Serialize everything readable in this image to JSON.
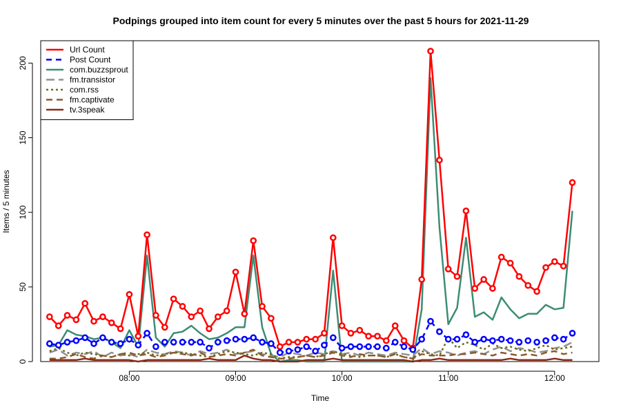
{
  "chart_data": {
    "type": "line",
    "title": "Podpings grouped into item count for every 5 minutes  over the past 5 hours for 2021-11-29",
    "xlabel": "Time",
    "ylabel": "Items / 5 minutes",
    "x_start": "07:15",
    "x_step_minutes": 5,
    "xlim": [
      "07:10",
      "12:25"
    ],
    "ylim": [
      0,
      215
    ],
    "x_ticks": [
      "08:00",
      "09:00",
      "10:00",
      "11:00",
      "12:00"
    ],
    "y_ticks": [
      0,
      50,
      100,
      150,
      200
    ],
    "grid": false,
    "legend_position": "top-left",
    "series": [
      {
        "name": "Url Count",
        "color": "#ff0000",
        "dash": "solid",
        "width": 2.5,
        "markers": true,
        "values": [
          30,
          24,
          31,
          28,
          39,
          27,
          30,
          26,
          22,
          45,
          17,
          85,
          31,
          23,
          42,
          37,
          30,
          34,
          22,
          30,
          34,
          60,
          32,
          81,
          37,
          29,
          10,
          13,
          13,
          15,
          15,
          19,
          83,
          24,
          19,
          21,
          17,
          17,
          14,
          24,
          14,
          9,
          55,
          208,
          135,
          62,
          57,
          101,
          49,
          55,
          49,
          70,
          66,
          57,
          51,
          47,
          63,
          67,
          64,
          120
        ]
      },
      {
        "name": "Post Count",
        "color": "#0000ff",
        "dash": "8,6",
        "width": 2.5,
        "markers": true,
        "values": [
          12,
          11,
          13,
          14,
          16,
          12,
          16,
          13,
          12,
          15,
          11,
          19,
          10,
          13,
          13,
          13,
          13,
          13,
          9,
          13,
          14,
          15,
          15,
          16,
          13,
          12,
          6,
          7,
          8,
          10,
          7,
          11,
          16,
          9,
          10,
          10,
          10,
          10,
          9,
          13,
          10,
          8,
          15,
          27,
          20,
          15,
          15,
          18,
          13,
          15,
          14,
          15,
          14,
          13,
          14,
          13,
          14,
          16,
          15,
          19
        ]
      },
      {
        "name": "com.buzzsprout",
        "color": "#3c8c73",
        "dash": "solid",
        "width": 2.5,
        "markers": false,
        "values": [
          10,
          11,
          21,
          18,
          17,
          15,
          16,
          13,
          9,
          21,
          10,
          71,
          16,
          10,
          19,
          20,
          24,
          19,
          15,
          16,
          19,
          23,
          23,
          71,
          23,
          5,
          0,
          1,
          1,
          0,
          0,
          0,
          61,
          0,
          0,
          0,
          0,
          0,
          0,
          0,
          0,
          0,
          35,
          190,
          90,
          25,
          36,
          83,
          30,
          33,
          28,
          43,
          35,
          29,
          32,
          32,
          38,
          35,
          36,
          101
        ]
      },
      {
        "name": "fm.transistor",
        "color": "#909090",
        "dash": "12,6",
        "width": 2.5,
        "markers": false,
        "values": [
          6,
          8,
          4,
          6,
          5,
          7,
          3,
          6,
          4,
          5,
          3,
          8,
          6,
          5,
          7,
          6,
          4,
          7,
          5,
          6,
          8,
          5,
          6,
          7,
          5,
          4,
          3,
          6,
          5,
          4,
          6,
          5,
          7,
          5,
          6,
          4,
          6,
          5,
          4,
          6,
          5,
          4,
          9,
          5,
          7,
          6,
          4,
          6,
          7,
          5,
          8,
          10,
          7,
          9,
          8,
          6,
          7,
          9,
          10,
          13
        ]
      },
      {
        "name": "com.rss",
        "color": "#6b6b1a",
        "dash": "3,4",
        "width": 2.5,
        "markers": false,
        "values": [
          7,
          9,
          6,
          4,
          6,
          5,
          4,
          3,
          5,
          4,
          5,
          6,
          4,
          5,
          6,
          6,
          5,
          4,
          3,
          5,
          7,
          6,
          5,
          4,
          6,
          5,
          2,
          3,
          3,
          4,
          3,
          5,
          7,
          5,
          4,
          3,
          4,
          4,
          3,
          5,
          3,
          2,
          7,
          5,
          4,
          16,
          9,
          13,
          11,
          8,
          12,
          9,
          10,
          8,
          7,
          9,
          11,
          8,
          9,
          10
        ]
      },
      {
        "name": "fm.captivate",
        "color": "#8c5a2b",
        "dash": "9,6",
        "width": 2.5,
        "markers": false,
        "values": [
          2,
          2,
          3,
          5,
          3,
          2,
          4,
          3,
          5,
          6,
          4,
          5,
          3,
          4,
          6,
          5,
          4,
          6,
          3,
          4,
          5,
          4,
          6,
          8,
          4,
          3,
          2,
          2,
          3,
          4,
          3,
          4,
          6,
          4,
          3,
          5,
          4,
          4,
          3,
          5,
          3,
          2,
          5,
          4,
          4,
          4,
          5,
          5,
          6,
          5,
          4,
          6,
          5,
          4,
          5,
          4,
          6,
          7,
          5,
          6
        ]
      },
      {
        "name": "tv.3speak",
        "color": "#8b2a18",
        "dash": "solid",
        "width": 2.5,
        "markers": false,
        "values": [
          1,
          1,
          1,
          1,
          2,
          1,
          1,
          1,
          1,
          1,
          0,
          1,
          1,
          1,
          1,
          1,
          1,
          1,
          2,
          1,
          1,
          1,
          4,
          2,
          1,
          1,
          0,
          0,
          0,
          1,
          1,
          1,
          2,
          1,
          1,
          1,
          1,
          1,
          1,
          1,
          1,
          0,
          1,
          1,
          2,
          1,
          1,
          1,
          1,
          1,
          1,
          1,
          2,
          1,
          1,
          1,
          1,
          2,
          1,
          1
        ]
      }
    ]
  }
}
